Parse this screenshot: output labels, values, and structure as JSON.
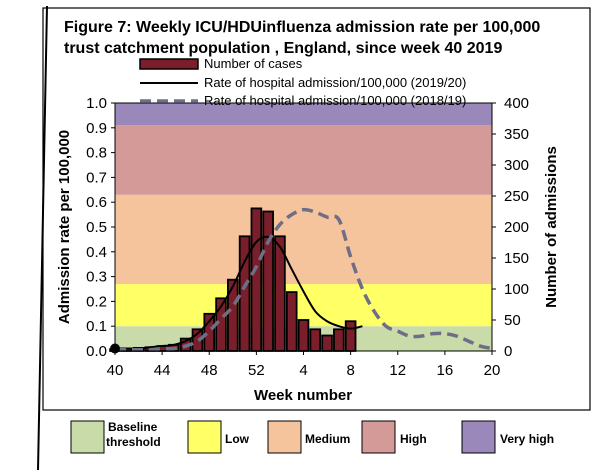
{
  "chart_data": {
    "type": "bar",
    "title_line1": "Figure 7: Weekly ICU/HDUinfluenza admission rate per 100,000",
    "title_line2": "trust catchment population , England, since week 40 2019",
    "xlabel": "Week number",
    "ylabel_left": "Admission rate per 100,000",
    "ylabel_right": "Number of admissions",
    "x_ticks": [
      "40",
      "44",
      "48",
      "52",
      "4",
      "8",
      "12",
      "16",
      "20"
    ],
    "y_left_ticks": [
      "0.0",
      "0.1",
      "0.2",
      "0.3",
      "0.4",
      "0.5",
      "0.6",
      "0.7",
      "0.8",
      "0.9",
      "1.0"
    ],
    "y_right_ticks": [
      "0",
      "50",
      "100",
      "150",
      "200",
      "250",
      "300",
      "350",
      "400"
    ],
    "ylim_left": [
      0,
      1.0
    ],
    "ylim_right": [
      0,
      400
    ],
    "legend": [
      {
        "label": "Number of cases"
      },
      {
        "label": "Rate of hospital admission/100,000 (2019/20)"
      },
      {
        "label": "Rate of hospital admission/100,000 (2018/19)"
      }
    ],
    "bands": [
      {
        "label_line1": "Baseline",
        "label_line2": "threshold",
        "from": 0.0,
        "to": 0.1,
        "color": "#c9dba9"
      },
      {
        "label_line1": "Low",
        "label_line2": "",
        "from": 0.1,
        "to": 0.27,
        "color": "#ffff66"
      },
      {
        "label_line1": "Medium",
        "label_line2": "",
        "from": 0.27,
        "to": 0.63,
        "color": "#f5c49c"
      },
      {
        "label_line1": "High",
        "label_line2": "",
        "from": 0.63,
        "to": 0.91,
        "color": "#d49a98"
      },
      {
        "label_line1": "Very high",
        "label_line2": "",
        "from": 0.91,
        "to": 1.0,
        "color": "#9a88bb"
      }
    ],
    "bar_weeks": [
      "40",
      "41",
      "42",
      "43",
      "44",
      "45",
      "46",
      "47",
      "48",
      "49",
      "50",
      "51",
      "52",
      "1",
      "2",
      "3",
      "4",
      "5",
      "6",
      "7",
      "8"
    ],
    "bar_values": [
      3,
      4,
      5,
      6,
      8,
      10,
      20,
      35,
      60,
      85,
      115,
      185,
      230,
      225,
      185,
      95,
      50,
      35,
      25,
      35,
      48
    ],
    "series_2019_20": [
      0.01,
      0.01,
      0.01,
      0.015,
      0.02,
      0.025,
      0.04,
      0.07,
      0.12,
      0.18,
      0.26,
      0.36,
      0.44,
      0.46,
      0.42,
      0.33,
      0.24,
      0.16,
      0.12,
      0.1,
      0.09,
      0.1
    ],
    "series_2018_19": [
      0.005,
      0.005,
      0.005,
      0.005,
      0.01,
      0.01,
      0.02,
      0.04,
      0.08,
      0.13,
      0.18,
      0.26,
      0.34,
      0.44,
      0.51,
      0.55,
      0.57,
      0.56,
      0.54,
      0.53,
      0.38,
      0.25,
      0.16,
      0.1,
      0.08,
      0.06,
      0.06,
      0.07,
      0.07,
      0.06,
      0.04,
      0.02,
      0.01
    ]
  }
}
